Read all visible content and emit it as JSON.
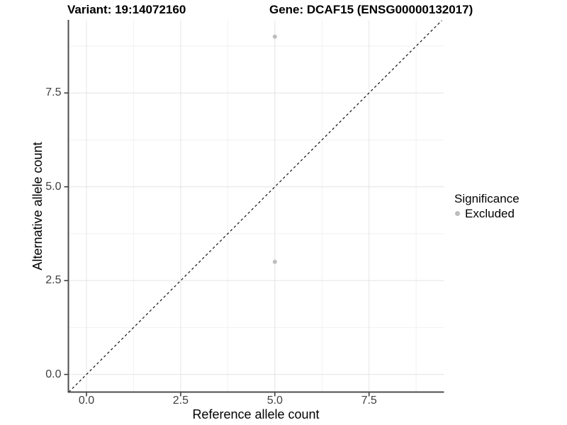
{
  "titles": {
    "variant": "Variant: 19:14072160",
    "gene": "Gene: DCAF15 (ENSG00000132017)"
  },
  "chart_data": {
    "type": "scatter",
    "xlabel": "Reference allele count",
    "ylabel": "Alternative allele count",
    "xlim": [
      -0.48,
      9.49
    ],
    "ylim": [
      -0.47,
      9.43
    ],
    "xticks": [
      0.0,
      2.5,
      5.0,
      7.5
    ],
    "yticks": [
      0.0,
      2.5,
      5.0,
      7.5
    ],
    "xtick_labels": [
      "0.0",
      "2.5",
      "5.0",
      "7.5"
    ],
    "ytick_labels": [
      "0.0",
      "2.5",
      "5.0",
      "7.5"
    ],
    "minor_xticks": [
      1.25,
      3.75,
      6.25,
      8.75
    ],
    "minor_yticks": [
      1.25,
      3.75,
      6.25,
      8.75
    ],
    "grid": true,
    "series": [
      {
        "name": "Excluded",
        "color": "#bdbdbd",
        "points": [
          {
            "x": 5,
            "y": 9
          },
          {
            "x": 5,
            "y": 3
          }
        ]
      }
    ],
    "reference_line": {
      "type": "identity",
      "style": "dashed",
      "color": "#111111"
    },
    "legend": {
      "title": "Significance",
      "position": "right",
      "items": [
        {
          "label": "Excluded",
          "color": "#bdbdbd"
        }
      ]
    }
  },
  "theme": {
    "major_grid_color": "#e4e4e4",
    "minor_grid_color": "#f1f1f1",
    "axis_line_color": "#4d4d4d",
    "tick_color": "#333333"
  }
}
